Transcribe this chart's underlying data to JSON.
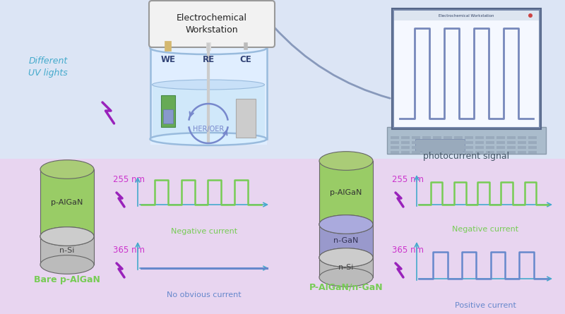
{
  "bg_top": "#dce8f5",
  "bg_bottom": "#e8d8f0",
  "ws_text": "Electrochemical\nWorkstation",
  "we_label": "WE",
  "re_label": "RE",
  "ce_label": "CE",
  "her_oer_text": "HER/OER",
  "diff_uv_text": "Different\nUV lights",
  "photocurrent_text": "photocurrent signal",
  "bare_label": "Bare p-AlGaN",
  "junction_label": "P-AlGaN/n-GaN",
  "neg_label": "Negative current",
  "no_label": "No obvious current",
  "pos_label": "Positive current",
  "nm255_color": "#cc33cc",
  "nm365_color": "#cc33cc",
  "green_color": "#77cc55",
  "blue_color": "#6688cc",
  "p_algan_top": "#aacc77",
  "p_algan_body": "#99cc66",
  "n_si_top": "#cccccc",
  "n_si_body": "#bbbbbb",
  "n_gan_top": "#aaaadd",
  "n_gan_body": "#9999cc",
  "wood_color": "#d4b870",
  "we_green": "#55aa55",
  "water_fill": "#ddeeff",
  "beaker_edge": "#99bbdd",
  "laptop_body": "#aabbcc",
  "laptop_screen": "#f0f5ff",
  "laptop_signal": "#7788bb",
  "uv_arrow_color": "#44aacc"
}
